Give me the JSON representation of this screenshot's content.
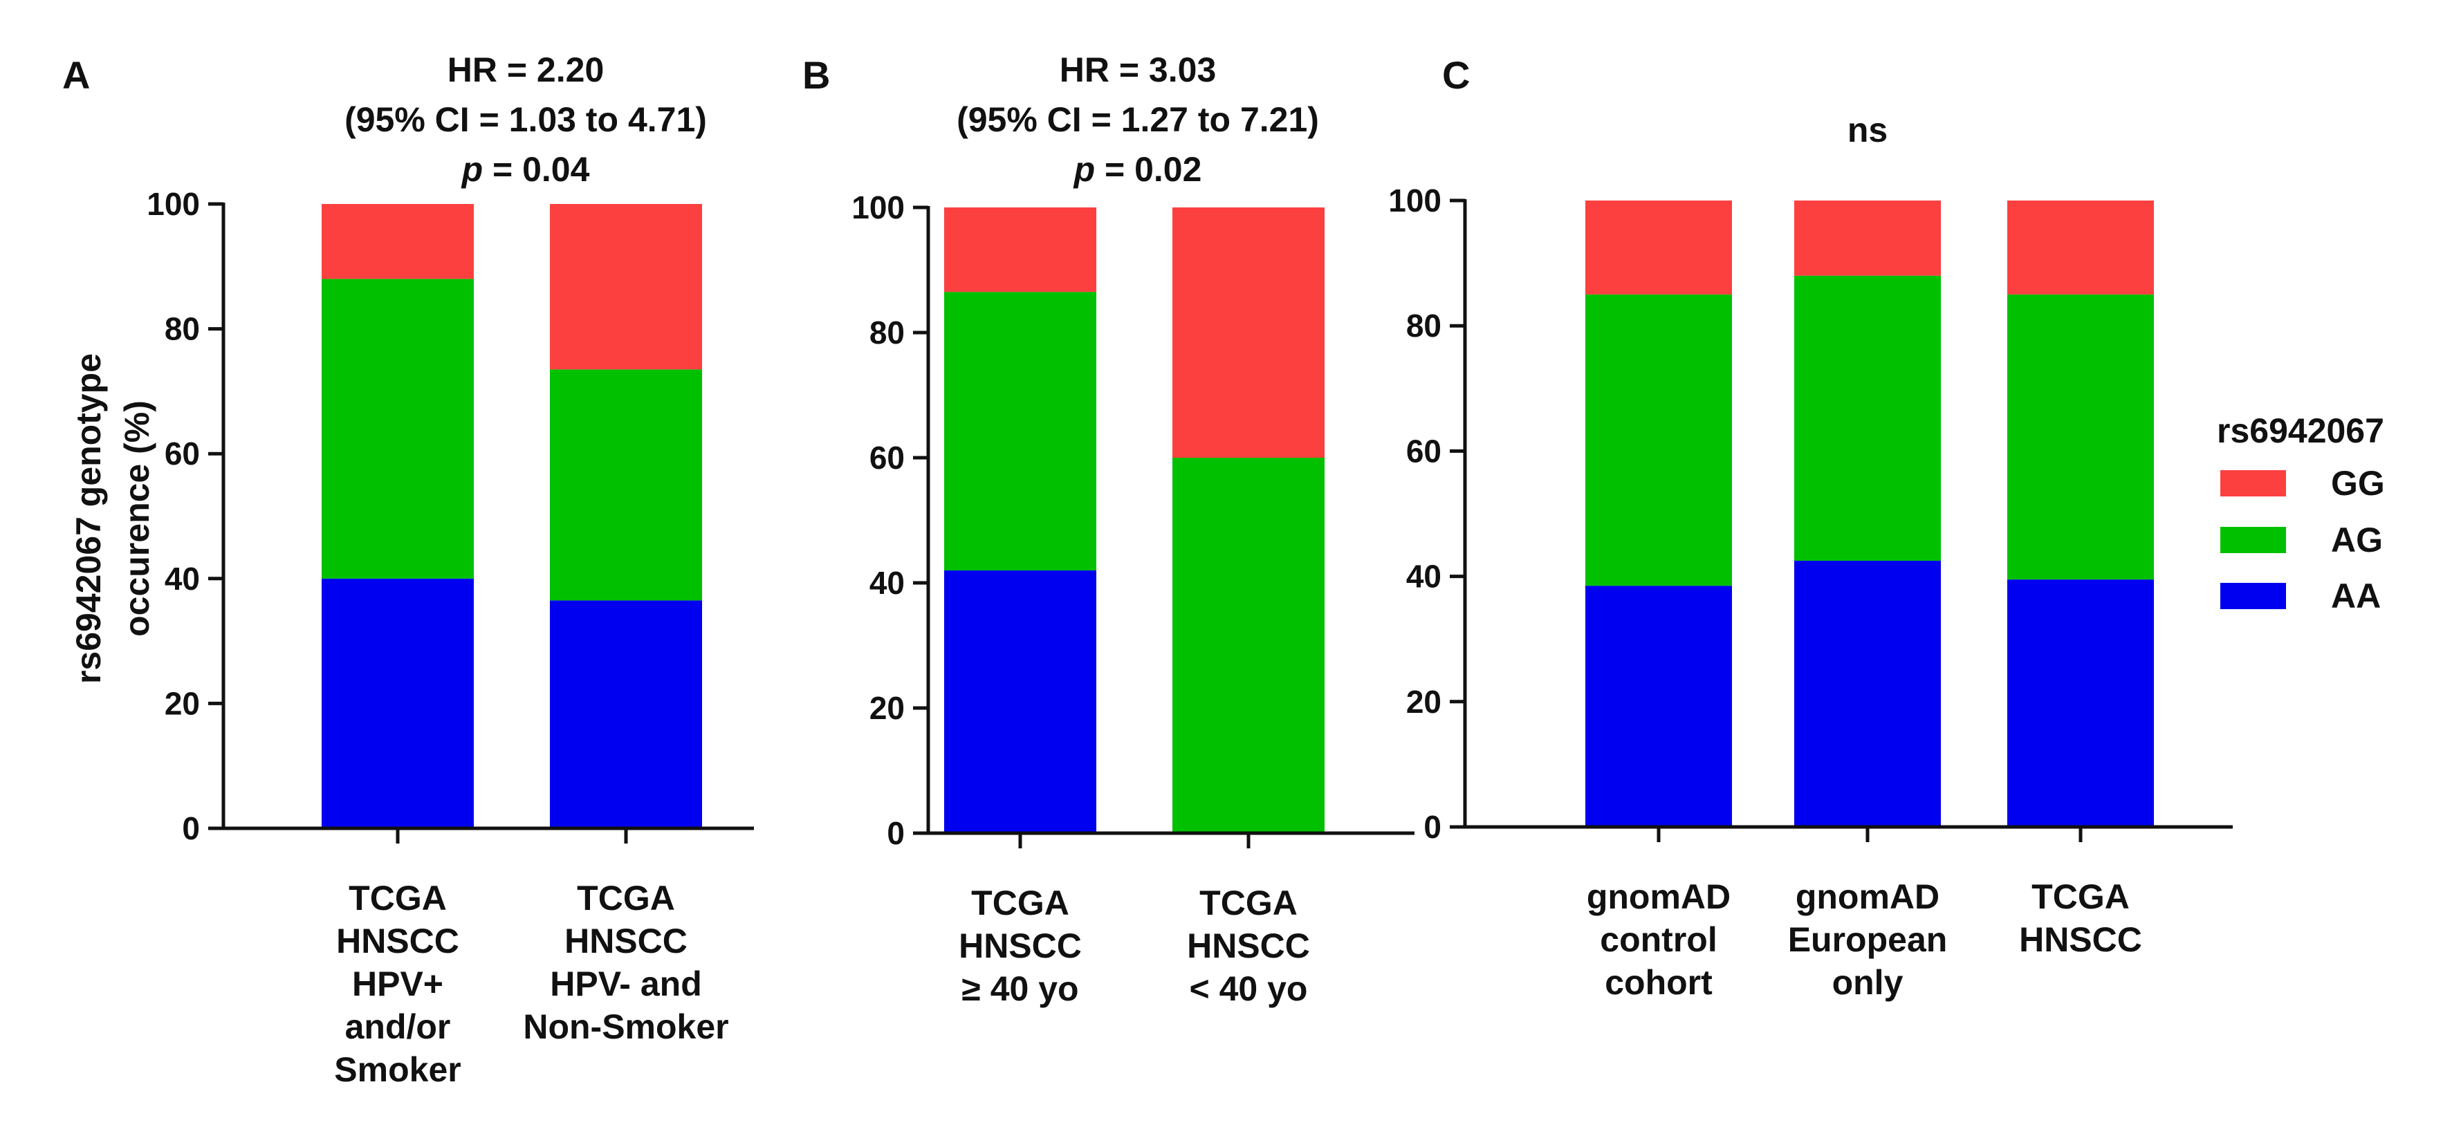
{
  "colors": {
    "GG": "#fc4040",
    "AG": "#00c000",
    "AA": "#0000f0"
  },
  "y_axis_label": [
    "rs6942067 genotype",
    "occurence (%)"
  ],
  "legend": {
    "title": "rs6942067",
    "entries": [
      "GG",
      "AG",
      "AA"
    ]
  },
  "chart_data": [
    {
      "type": "bar",
      "stacked": true,
      "panel": "A",
      "stats": [
        "HR = 2.20",
        "(95%  CI = 1.03 to 4.71)",
        "= 0.04"
      ],
      "stats_italic_prefix": [
        "",
        "",
        "p"
      ],
      "ylim": [
        0,
        100
      ],
      "yticks": [
        0,
        20,
        40,
        60,
        80,
        100
      ],
      "categories": [
        [
          "TCGA",
          "HNSCC",
          "HPV+",
          "and/or",
          "Smoker"
        ],
        [
          "TCGA",
          "HNSCC",
          "HPV- and",
          "Non-Smoker"
        ]
      ],
      "series": [
        {
          "name": "AA",
          "values": [
            40,
            36.5
          ]
        },
        {
          "name": "AG",
          "values": [
            48,
            37
          ]
        },
        {
          "name": "GG",
          "values": [
            12,
            26.5
          ]
        }
      ]
    },
    {
      "type": "bar",
      "stacked": true,
      "panel": "B",
      "stats": [
        "HR = 3.03",
        "(95%  CI = 1.27 to 7.21)",
        "= 0.02"
      ],
      "stats_italic_prefix": [
        "",
        "",
        "p"
      ],
      "ylim": [
        0,
        100
      ],
      "yticks": [
        0,
        20,
        40,
        60,
        80,
        100
      ],
      "categories": [
        [
          "TCGA",
          "HNSCC",
          "≥ 40 yo"
        ],
        [
          "TCGA",
          "HNSCC",
          "< 40 yo"
        ]
      ],
      "series": [
        {
          "name": "AA",
          "values": [
            42,
            0
          ]
        },
        {
          "name": "AG",
          "values": [
            44.5,
            60
          ]
        },
        {
          "name": "GG",
          "values": [
            13.5,
            40
          ]
        }
      ]
    },
    {
      "type": "bar",
      "stacked": true,
      "panel": "C",
      "stats": [
        "ns"
      ],
      "stats_italic_prefix": [
        ""
      ],
      "ylim": [
        0,
        100
      ],
      "yticks": [
        0,
        20,
        40,
        60,
        80,
        100
      ],
      "categories": [
        [
          "gnomAD",
          "control",
          "cohort"
        ],
        [
          "gnomAD",
          "European",
          "only"
        ],
        [
          "TCGA",
          "HNSCC"
        ]
      ],
      "series": [
        {
          "name": "AA",
          "values": [
            38.5,
            42.5,
            39.5
          ]
        },
        {
          "name": "AG",
          "values": [
            46.5,
            45.5,
            45.5
          ]
        },
        {
          "name": "GG",
          "values": [
            15,
            12,
            15
          ]
        }
      ]
    }
  ]
}
